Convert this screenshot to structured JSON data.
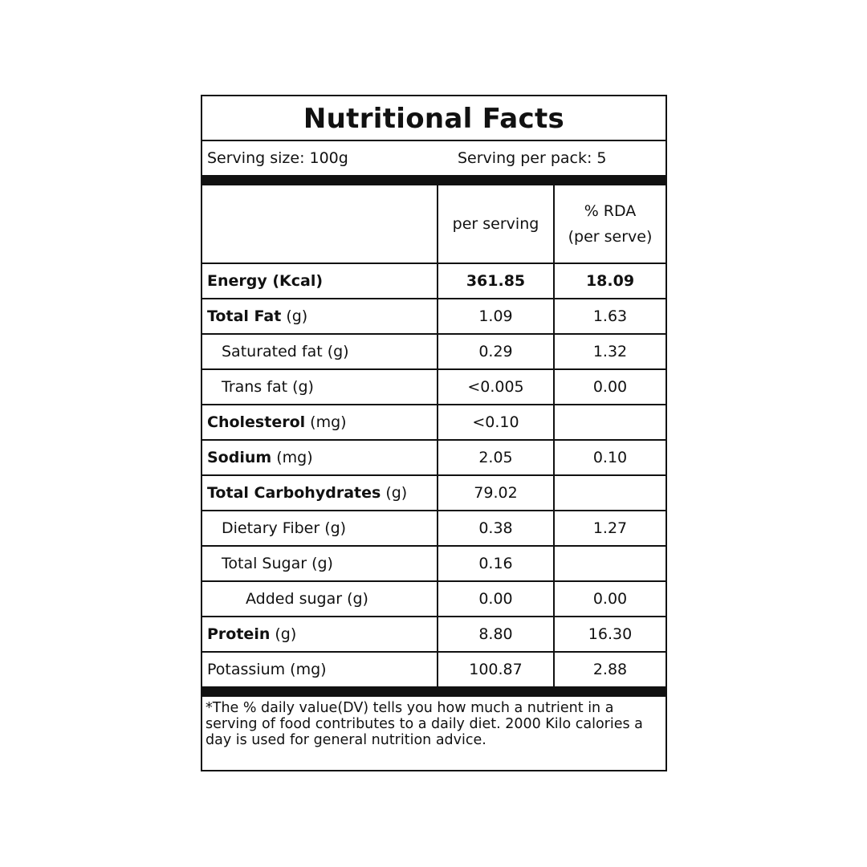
{
  "title": "Nutritional Facts",
  "serving_size": "Serving size: 100g",
  "servings_per_pack": "Serving per pack: 5",
  "headers": {
    "per_serving": "per serving",
    "rda_line1": "% RDA",
    "rda_line2": "(per serve)"
  },
  "rows": [
    {
      "name": "Energy (Kcal)",
      "unit": "",
      "per_serving": "361.85",
      "rda": "18.09"
    },
    {
      "name": "Total Fat",
      "unit": " (g)",
      "per_serving": "1.09",
      "rda": "1.63"
    },
    {
      "name": "Saturated fat (g)",
      "unit": "",
      "per_serving": "0.29",
      "rda": "1.32"
    },
    {
      "name": "Trans fat (g)",
      "unit": "",
      "per_serving": "<0.005",
      "rda": "0.00"
    },
    {
      "name": "Cholesterol",
      "unit": " (mg)",
      "per_serving": "<0.10",
      "rda": ""
    },
    {
      "name": "Sodium",
      "unit": " (mg)",
      "per_serving": "2.05",
      "rda": "0.10"
    },
    {
      "name": "Total Carbohydrates",
      "unit": " (g)",
      "per_serving": "79.02",
      "rda": ""
    },
    {
      "name": "Dietary Fiber (g)",
      "unit": "",
      "per_serving": "0.38",
      "rda": "1.27"
    },
    {
      "name": "Total Sugar (g)",
      "unit": "",
      "per_serving": "0.16",
      "rda": ""
    },
    {
      "name": "Added sugar (g)",
      "unit": "",
      "per_serving": "0.00",
      "rda": "0.00"
    },
    {
      "name": "Protein",
      "unit": " (g)",
      "per_serving": "8.80",
      "rda": "16.30"
    },
    {
      "name": "Potassium (mg)",
      "unit": "",
      "per_serving": "100.87",
      "rda": "2.88"
    }
  ],
  "footnote": "*The % daily value(DV) tells you how much a nutrient in a serving of food contributes to a daily diet. 2000 Kilo calories a day is used for general nutrition advice."
}
